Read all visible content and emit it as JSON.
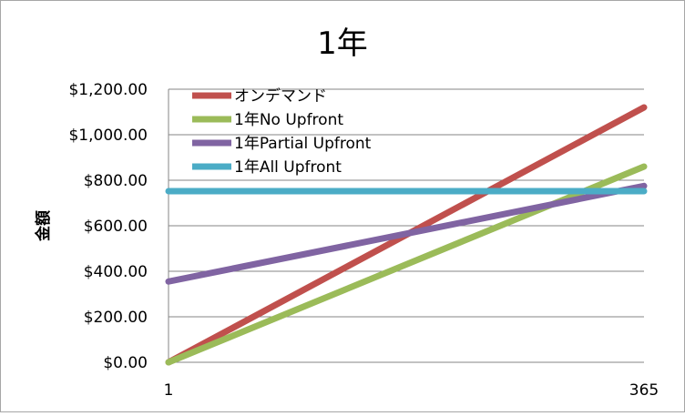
{
  "chart_data": {
    "type": "line",
    "title": "1年",
    "ylabel": "金額",
    "xlabel": "",
    "x": [
      1,
      365
    ],
    "x_tick_labels": [
      "1",
      "365"
    ],
    "ylim": [
      0,
      1200
    ],
    "y_tick_labels": [
      "$0.00",
      "$200.00",
      "$400.00",
      "$600.00",
      "$800.00",
      "$1,000.00",
      "$1,200.00"
    ],
    "y_ticks": [
      0,
      200,
      400,
      600,
      800,
      1000,
      1200
    ],
    "grid": true,
    "legend": "top-left inside plot",
    "series": [
      {
        "name": "オンデマンド",
        "color": "#c0504d",
        "values": [
          0,
          1120
        ]
      },
      {
        "name": "1年No Upfront",
        "color": "#9bbb59",
        "values": [
          0,
          860
        ]
      },
      {
        "name": "1年Partial Upfront",
        "color": "#8064a2",
        "values": [
          355,
          775
        ]
      },
      {
        "name": "1年All Upfront",
        "color": "#4bacc6",
        "values": [
          752,
          752
        ]
      }
    ]
  }
}
